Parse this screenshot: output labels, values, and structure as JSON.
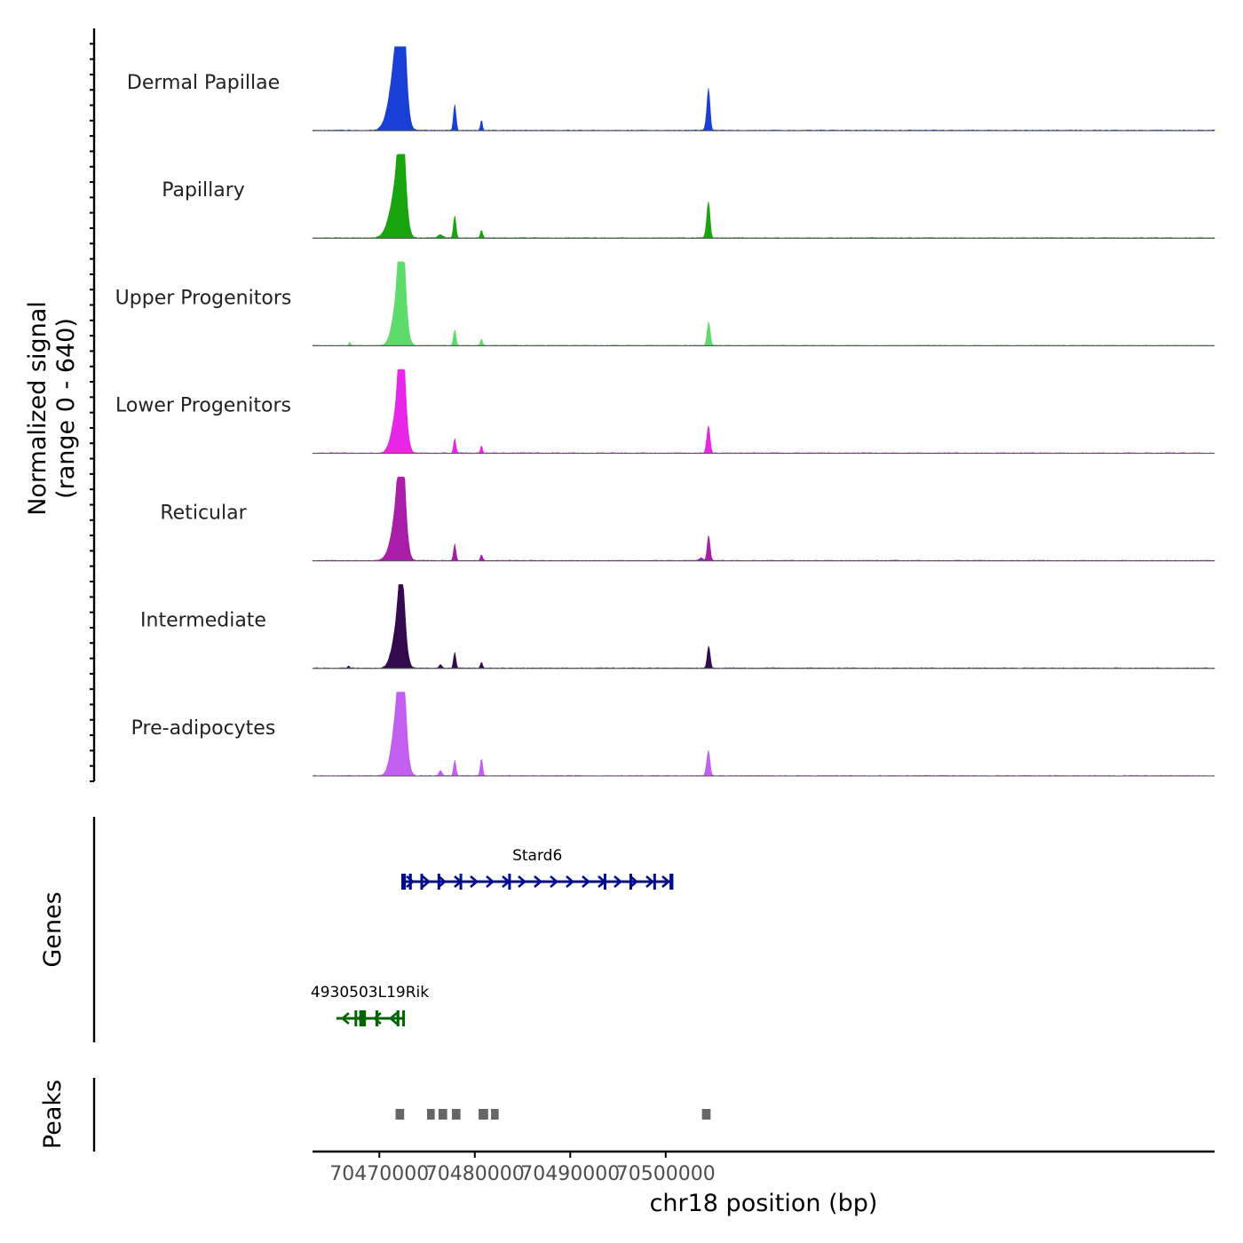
{
  "chart_data": {
    "type": "area",
    "title": "",
    "xlabel": "chr18 position (bp)",
    "xlim": [
      70463000,
      70557500
    ],
    "x_ticks": [
      {
        "value": 70470000,
        "label": "70470000"
      },
      {
        "value": 70480000,
        "label": "70480000"
      },
      {
        "value": 70490000,
        "label": "70490000"
      },
      {
        "value": 70500000,
        "label": "70500000"
      }
    ],
    "coverage": {
      "ylabel_line1": "Normalized signal",
      "ylabel_line2": "(range 0 - 640)",
      "ylim": [
        0,
        640
      ],
      "tracks": [
        {
          "name": "Dermal Papillae",
          "color": "#1a3fd6",
          "peaks": [
            [
              70471600,
              280,
              700
            ],
            [
              70471900,
              330,
              500
            ],
            [
              70472300,
              620,
              320
            ],
            [
              70472500,
              350,
              400
            ],
            [
              70477900,
              200,
              130
            ],
            [
              70480700,
              80,
              100
            ],
            [
              70504300,
              60,
              160
            ],
            [
              70504500,
              290,
              150
            ]
          ]
        },
        {
          "name": "Papillary",
          "color": "#19a30f",
          "peaks": [
            [
              70471600,
              200,
              700
            ],
            [
              70471900,
              200,
              500
            ],
            [
              70472300,
              550,
              320
            ],
            [
              70472500,
              250,
              400
            ],
            [
              70476400,
              25,
              260
            ],
            [
              70477900,
              170,
              130
            ],
            [
              70480700,
              60,
              120
            ],
            [
              70504300,
              60,
              150
            ],
            [
              70504500,
              250,
              150
            ]
          ]
        },
        {
          "name": "Upper Progenitors",
          "color": "#5ddb6b",
          "peaks": [
            [
              70466900,
              25,
              80
            ],
            [
              70471600,
              120,
              500
            ],
            [
              70471900,
              200,
              400
            ],
            [
              70472300,
              600,
              300
            ],
            [
              70472550,
              300,
              380
            ],
            [
              70477900,
              120,
              130
            ],
            [
              70480700,
              50,
              110
            ],
            [
              70504500,
              180,
              160
            ]
          ]
        },
        {
          "name": "Lower Progenitors",
          "color": "#e826e8",
          "peaks": [
            [
              70471600,
              150,
              500
            ],
            [
              70471900,
              150,
              400
            ],
            [
              70472300,
              620,
              300
            ],
            [
              70472550,
              300,
              380
            ],
            [
              70477900,
              110,
              120
            ],
            [
              70480700,
              55,
              100
            ],
            [
              70504300,
              40,
              120
            ],
            [
              70504500,
              200,
              150
            ]
          ]
        },
        {
          "name": "Reticular",
          "color": "#a81ea8",
          "peaks": [
            [
              70471600,
              170,
              600
            ],
            [
              70471900,
              240,
              400
            ],
            [
              70472300,
              580,
              300
            ],
            [
              70472550,
              280,
              380
            ],
            [
              70477900,
              130,
              120
            ],
            [
              70480700,
              45,
              110
            ],
            [
              70503700,
              20,
              200
            ],
            [
              70504500,
              190,
              150
            ]
          ]
        },
        {
          "name": "Intermediate",
          "color": "#330a4d",
          "peaks": [
            [
              70466800,
              18,
              100
            ],
            [
              70471600,
              130,
              500
            ],
            [
              70471900,
              160,
              400
            ],
            [
              70472300,
              500,
              300
            ],
            [
              70472550,
              180,
              380
            ],
            [
              70476400,
              25,
              150
            ],
            [
              70477900,
              120,
              120
            ],
            [
              70480700,
              45,
              110
            ],
            [
              70504500,
              170,
              150
            ]
          ]
        },
        {
          "name": "Pre-adipocytes",
          "color": "#c25ef0",
          "peaks": [
            [
              70471600,
              220,
              500
            ],
            [
              70471900,
              230,
              400
            ],
            [
              70472300,
              610,
              300
            ],
            [
              70472550,
              380,
              380
            ],
            [
              70476400,
              40,
              150
            ],
            [
              70477900,
              120,
              120
            ],
            [
              70480700,
              130,
              120
            ],
            [
              70504300,
              50,
              140
            ],
            [
              70504500,
              170,
              150
            ]
          ]
        }
      ]
    },
    "genes": {
      "ylabel": "Genes",
      "items": [
        {
          "name": "Stard6",
          "color": "#000c8f",
          "strand": "+",
          "start": 70472300,
          "end": 70500800,
          "exons": [
            [
              70472300,
              70472400
            ],
            [
              70472500,
              70472700
            ],
            [
              70473100,
              70473400
            ],
            [
              70474300,
              70474350
            ],
            [
              70476100,
              70476200
            ],
            [
              70478400,
              70478450
            ],
            [
              70483500,
              70483600
            ],
            [
              70493500,
              70493600
            ],
            [
              70496200,
              70496300
            ],
            [
              70498700,
              70498750
            ],
            [
              70500400,
              70500800
            ]
          ]
        },
        {
          "name": "4930503L19Rik",
          "color": "#006400",
          "strand": "-",
          "start": 70465500,
          "end": 70472500,
          "exons": [
            [
              70467400,
              70467500
            ],
            [
              70467900,
              70468600
            ],
            [
              70469600,
              70469900
            ],
            [
              70471800,
              70472100
            ],
            [
              70472400,
              70472500
            ]
          ]
        }
      ]
    },
    "peaks": {
      "ylabel": "Peaks",
      "color": "#666666",
      "intervals": [
        [
          70471700,
          70472600
        ],
        [
          70475000,
          70475800
        ],
        [
          70476200,
          70477100
        ],
        [
          70477600,
          70478500
        ],
        [
          70480400,
          70481400
        ],
        [
          70481700,
          70482500
        ],
        [
          70503800,
          70504700
        ]
      ]
    }
  }
}
